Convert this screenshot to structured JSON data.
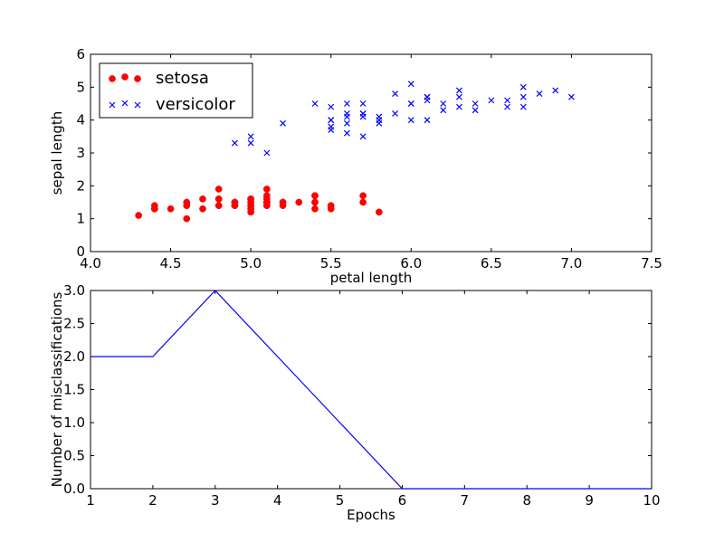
{
  "chart_data": [
    {
      "type": "scatter",
      "title": "",
      "xlabel": "petal length",
      "ylabel": "sepal length",
      "xlim": [
        4.0,
        7.5
      ],
      "ylim": [
        0,
        6
      ],
      "xticks": [
        "4.0",
        "4.5",
        "5.0",
        "5.5",
        "6.0",
        "6.5",
        "7.0",
        "7.5"
      ],
      "yticks": [
        "0",
        "1",
        "2",
        "3",
        "4",
        "5",
        "6"
      ],
      "legend": {
        "position": "top-left"
      },
      "series": [
        {
          "name": "setosa",
          "marker": "circle",
          "color": "#ff0000",
          "points": [
            [
              5.1,
              1.4
            ],
            [
              4.9,
              1.4
            ],
            [
              4.7,
              1.3
            ],
            [
              4.6,
              1.5
            ],
            [
              5.0,
              1.4
            ],
            [
              5.4,
              1.7
            ],
            [
              4.6,
              1.4
            ],
            [
              5.0,
              1.5
            ],
            [
              4.4,
              1.4
            ],
            [
              4.9,
              1.5
            ],
            [
              5.4,
              1.5
            ],
            [
              4.8,
              1.6
            ],
            [
              4.8,
              1.4
            ],
            [
              4.3,
              1.1
            ],
            [
              5.8,
              1.2
            ],
            [
              5.7,
              1.5
            ],
            [
              5.4,
              1.3
            ],
            [
              5.1,
              1.4
            ],
            [
              5.7,
              1.7
            ],
            [
              5.1,
              1.5
            ],
            [
              5.4,
              1.7
            ],
            [
              5.1,
              1.5
            ],
            [
              4.6,
              1.0
            ],
            [
              5.1,
              1.7
            ],
            [
              4.8,
              1.9
            ],
            [
              5.0,
              1.6
            ],
            [
              5.0,
              1.6
            ],
            [
              5.2,
              1.5
            ],
            [
              5.2,
              1.4
            ],
            [
              4.7,
              1.6
            ],
            [
              4.8,
              1.6
            ],
            [
              5.4,
              1.5
            ],
            [
              5.2,
              1.5
            ],
            [
              5.5,
              1.4
            ],
            [
              4.9,
              1.5
            ],
            [
              5.0,
              1.2
            ],
            [
              5.5,
              1.3
            ],
            [
              4.9,
              1.4
            ],
            [
              4.4,
              1.3
            ],
            [
              5.1,
              1.5
            ],
            [
              5.0,
              1.3
            ],
            [
              4.5,
              1.3
            ],
            [
              4.4,
              1.3
            ],
            [
              5.0,
              1.6
            ],
            [
              5.1,
              1.9
            ],
            [
              4.8,
              1.4
            ],
            [
              5.1,
              1.6
            ],
            [
              4.6,
              1.4
            ],
            [
              5.3,
              1.5
            ],
            [
              5.0,
              1.4
            ]
          ]
        },
        {
          "name": "versicolor",
          "marker": "x",
          "color": "#0000ff",
          "points": [
            [
              7.0,
              4.7
            ],
            [
              6.4,
              4.5
            ],
            [
              6.9,
              4.9
            ],
            [
              5.5,
              4.0
            ],
            [
              6.5,
              4.6
            ],
            [
              5.7,
              4.5
            ],
            [
              6.3,
              4.7
            ],
            [
              4.9,
              3.3
            ],
            [
              6.6,
              4.6
            ],
            [
              5.2,
              3.9
            ],
            [
              5.0,
              3.5
            ],
            [
              5.9,
              4.2
            ],
            [
              6.0,
              4.0
            ],
            [
              6.1,
              4.7
            ],
            [
              5.6,
              3.6
            ],
            [
              6.7,
              4.4
            ],
            [
              5.6,
              4.5
            ],
            [
              5.8,
              4.1
            ],
            [
              6.2,
              4.5
            ],
            [
              5.6,
              3.9
            ],
            [
              5.9,
              4.8
            ],
            [
              6.1,
              4.0
            ],
            [
              6.3,
              4.9
            ],
            [
              6.1,
              4.7
            ],
            [
              6.4,
              4.3
            ],
            [
              6.6,
              4.4
            ],
            [
              6.8,
              4.8
            ],
            [
              6.7,
              5.0
            ],
            [
              6.0,
              4.5
            ],
            [
              5.7,
              3.5
            ],
            [
              5.5,
              3.8
            ],
            [
              5.5,
              3.7
            ],
            [
              5.8,
              3.9
            ],
            [
              6.0,
              5.1
            ],
            [
              5.4,
              4.5
            ],
            [
              6.0,
              4.5
            ],
            [
              6.7,
              4.7
            ],
            [
              6.3,
              4.4
            ],
            [
              5.6,
              4.1
            ],
            [
              5.5,
              4.0
            ],
            [
              5.5,
              4.4
            ],
            [
              6.1,
              4.6
            ],
            [
              5.8,
              4.0
            ],
            [
              5.0,
              3.3
            ],
            [
              5.6,
              4.2
            ],
            [
              5.7,
              4.2
            ],
            [
              5.7,
              4.2
            ],
            [
              6.2,
              4.3
            ],
            [
              5.1,
              3.0
            ],
            [
              5.7,
              4.1
            ]
          ]
        }
      ]
    },
    {
      "type": "line",
      "title": "",
      "xlabel": "Epochs",
      "ylabel": "Number of misclassifications",
      "xlim": [
        1,
        10
      ],
      "ylim": [
        0,
        3
      ],
      "xticks": [
        "1",
        "2",
        "3",
        "4",
        "5",
        "6",
        "7",
        "8",
        "9",
        "10"
      ],
      "yticks": [
        "0.0",
        "0.5",
        "1.0",
        "1.5",
        "2.0",
        "2.5",
        "3.0"
      ],
      "series": [
        {
          "color": "#0000ff",
          "x": [
            1,
            2,
            3,
            4,
            5,
            6,
            7,
            8,
            9,
            10
          ],
          "values": [
            2,
            2,
            3,
            2,
            1,
            0,
            0,
            0,
            0,
            0
          ]
        }
      ]
    }
  ]
}
